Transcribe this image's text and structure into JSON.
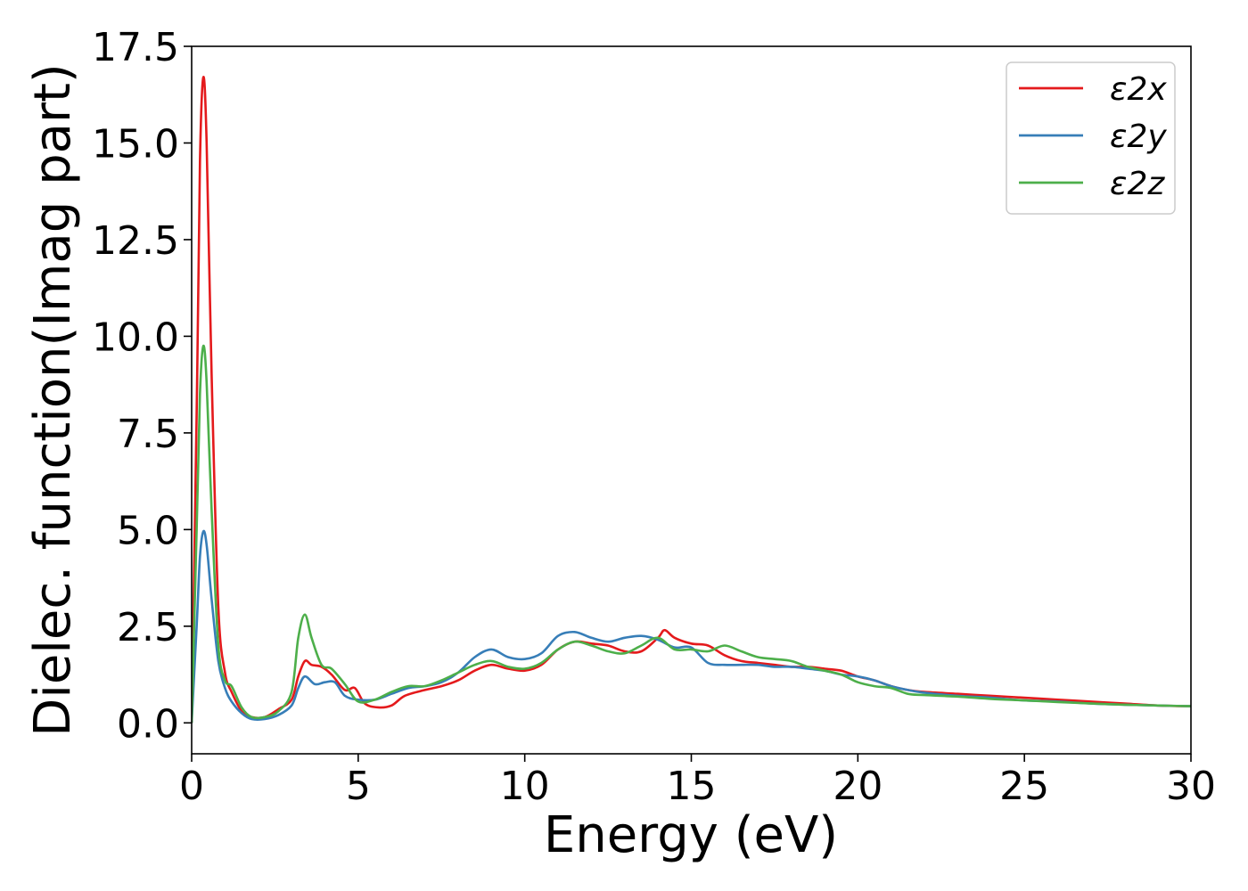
{
  "chart_data": {
    "type": "line",
    "xlabel": "Energy (eV)",
    "ylabel": "Dielec. function(Imag part)",
    "xlim": [
      0,
      30
    ],
    "ylim": [
      -0.8,
      17.5
    ],
    "xticks": [
      "0",
      "5",
      "10",
      "15",
      "20",
      "25",
      "30"
    ],
    "yticks": [
      "0.0",
      "2.5",
      "5.0",
      "7.5",
      "10.0",
      "12.5",
      "15.0",
      "17.5"
    ],
    "grid": false,
    "legend_position": "top-right",
    "series": [
      {
        "name": "ε2x",
        "color": "#e41a1c",
        "points": [
          [
            0,
            0
          ],
          [
            0.15,
            8.0
          ],
          [
            0.25,
            14.5
          ],
          [
            0.35,
            16.7
          ],
          [
            0.45,
            15.0
          ],
          [
            0.6,
            9.0
          ],
          [
            0.8,
            3.0
          ],
          [
            1.0,
            1.3
          ],
          [
            1.2,
            0.8
          ],
          [
            1.5,
            0.3
          ],
          [
            1.8,
            0.15
          ],
          [
            2.2,
            0.15
          ],
          [
            2.6,
            0.35
          ],
          [
            3.0,
            0.6
          ],
          [
            3.2,
            1.2
          ],
          [
            3.4,
            1.6
          ],
          [
            3.6,
            1.5
          ],
          [
            3.9,
            1.45
          ],
          [
            4.2,
            1.25
          ],
          [
            4.6,
            0.85
          ],
          [
            4.9,
            0.9
          ],
          [
            5.2,
            0.5
          ],
          [
            5.6,
            0.4
          ],
          [
            6.0,
            0.45
          ],
          [
            6.4,
            0.7
          ],
          [
            7.0,
            0.85
          ],
          [
            7.5,
            0.95
          ],
          [
            8.0,
            1.1
          ],
          [
            8.5,
            1.35
          ],
          [
            9.0,
            1.5
          ],
          [
            9.5,
            1.4
          ],
          [
            10.0,
            1.35
          ],
          [
            10.5,
            1.5
          ],
          [
            11.0,
            1.9
          ],
          [
            11.5,
            2.1
          ],
          [
            12.0,
            2.05
          ],
          [
            12.5,
            2.0
          ],
          [
            13.0,
            1.85
          ],
          [
            13.5,
            1.85
          ],
          [
            14.0,
            2.2
          ],
          [
            14.2,
            2.4
          ],
          [
            14.5,
            2.2
          ],
          [
            15.0,
            2.05
          ],
          [
            15.5,
            2.0
          ],
          [
            16.0,
            1.75
          ],
          [
            16.5,
            1.6
          ],
          [
            17.0,
            1.55
          ],
          [
            17.5,
            1.5
          ],
          [
            18.0,
            1.45
          ],
          [
            18.5,
            1.45
          ],
          [
            19.0,
            1.4
          ],
          [
            19.5,
            1.35
          ],
          [
            20.0,
            1.2
          ],
          [
            20.5,
            1.1
          ],
          [
            21.0,
            0.95
          ],
          [
            21.5,
            0.85
          ],
          [
            22.0,
            0.8
          ],
          [
            23.0,
            0.75
          ],
          [
            24.0,
            0.7
          ],
          [
            25.0,
            0.65
          ],
          [
            26.0,
            0.6
          ],
          [
            27.0,
            0.55
          ],
          [
            28.0,
            0.5
          ],
          [
            29.0,
            0.45
          ],
          [
            30.0,
            0.43
          ]
        ]
      },
      {
        "name": "ε2y",
        "color": "#377eb8",
        "points": [
          [
            0,
            0
          ],
          [
            0.15,
            2.5
          ],
          [
            0.25,
            4.3
          ],
          [
            0.35,
            4.95
          ],
          [
            0.45,
            4.6
          ],
          [
            0.6,
            3.2
          ],
          [
            0.8,
            1.6
          ],
          [
            1.0,
            0.9
          ],
          [
            1.2,
            0.55
          ],
          [
            1.5,
            0.25
          ],
          [
            1.8,
            0.1
          ],
          [
            2.2,
            0.1
          ],
          [
            2.6,
            0.2
          ],
          [
            3.0,
            0.45
          ],
          [
            3.2,
            0.9
          ],
          [
            3.4,
            1.2
          ],
          [
            3.7,
            1.0
          ],
          [
            4.0,
            1.05
          ],
          [
            4.3,
            1.05
          ],
          [
            4.6,
            0.7
          ],
          [
            5.0,
            0.6
          ],
          [
            5.5,
            0.6
          ],
          [
            6.0,
            0.75
          ],
          [
            6.5,
            0.9
          ],
          [
            7.0,
            0.95
          ],
          [
            7.5,
            1.05
          ],
          [
            8.0,
            1.3
          ],
          [
            8.5,
            1.7
          ],
          [
            9.0,
            1.9
          ],
          [
            9.5,
            1.7
          ],
          [
            10.0,
            1.65
          ],
          [
            10.5,
            1.8
          ],
          [
            11.0,
            2.25
          ],
          [
            11.5,
            2.35
          ],
          [
            12.0,
            2.2
          ],
          [
            12.5,
            2.1
          ],
          [
            13.0,
            2.2
          ],
          [
            13.5,
            2.25
          ],
          [
            14.0,
            2.15
          ],
          [
            14.5,
            1.95
          ],
          [
            15.0,
            1.95
          ],
          [
            15.5,
            1.55
          ],
          [
            16.0,
            1.5
          ],
          [
            16.5,
            1.5
          ],
          [
            17.0,
            1.5
          ],
          [
            17.5,
            1.45
          ],
          [
            18.0,
            1.45
          ],
          [
            18.5,
            1.4
          ],
          [
            19.0,
            1.35
          ],
          [
            19.5,
            1.25
          ],
          [
            20.0,
            1.2
          ],
          [
            20.5,
            1.1
          ],
          [
            21.0,
            0.95
          ],
          [
            21.5,
            0.85
          ],
          [
            22.0,
            0.78
          ],
          [
            23.0,
            0.7
          ],
          [
            24.0,
            0.65
          ],
          [
            25.0,
            0.58
          ],
          [
            26.0,
            0.55
          ],
          [
            27.0,
            0.5
          ],
          [
            28.0,
            0.47
          ],
          [
            29.0,
            0.45
          ],
          [
            30.0,
            0.43
          ]
        ]
      },
      {
        "name": "ε2z",
        "color": "#4daf4a",
        "points": [
          [
            0,
            0
          ],
          [
            0.15,
            5.0
          ],
          [
            0.25,
            8.5
          ],
          [
            0.35,
            9.75
          ],
          [
            0.45,
            8.8
          ],
          [
            0.6,
            5.5
          ],
          [
            0.8,
            2.0
          ],
          [
            1.0,
            1.1
          ],
          [
            1.2,
            0.95
          ],
          [
            1.5,
            0.4
          ],
          [
            1.8,
            0.15
          ],
          [
            2.2,
            0.15
          ],
          [
            2.6,
            0.3
          ],
          [
            3.0,
            0.8
          ],
          [
            3.2,
            2.2
          ],
          [
            3.4,
            2.8
          ],
          [
            3.6,
            2.2
          ],
          [
            3.9,
            1.5
          ],
          [
            4.2,
            1.4
          ],
          [
            4.6,
            1.0
          ],
          [
            5.0,
            0.55
          ],
          [
            5.5,
            0.6
          ],
          [
            6.0,
            0.8
          ],
          [
            6.5,
            0.95
          ],
          [
            7.0,
            0.95
          ],
          [
            7.5,
            1.1
          ],
          [
            8.0,
            1.3
          ],
          [
            8.5,
            1.5
          ],
          [
            9.0,
            1.6
          ],
          [
            9.5,
            1.45
          ],
          [
            10.0,
            1.4
          ],
          [
            10.5,
            1.55
          ],
          [
            11.0,
            1.9
          ],
          [
            11.5,
            2.1
          ],
          [
            12.0,
            2.0
          ],
          [
            12.5,
            1.85
          ],
          [
            13.0,
            1.8
          ],
          [
            13.5,
            2.0
          ],
          [
            14.0,
            2.2
          ],
          [
            14.5,
            1.9
          ],
          [
            15.0,
            1.9
          ],
          [
            15.5,
            1.85
          ],
          [
            16.0,
            2.0
          ],
          [
            16.5,
            1.85
          ],
          [
            17.0,
            1.7
          ],
          [
            17.5,
            1.65
          ],
          [
            18.0,
            1.6
          ],
          [
            18.5,
            1.45
          ],
          [
            19.0,
            1.35
          ],
          [
            19.5,
            1.25
          ],
          [
            20.0,
            1.05
          ],
          [
            20.5,
            0.95
          ],
          [
            21.0,
            0.9
          ],
          [
            21.5,
            0.75
          ],
          [
            22.0,
            0.72
          ],
          [
            23.0,
            0.68
          ],
          [
            24.0,
            0.62
          ],
          [
            25.0,
            0.58
          ],
          [
            26.0,
            0.54
          ],
          [
            27.0,
            0.5
          ],
          [
            28.0,
            0.47
          ],
          [
            29.0,
            0.45
          ],
          [
            30.0,
            0.43
          ]
        ]
      }
    ]
  }
}
